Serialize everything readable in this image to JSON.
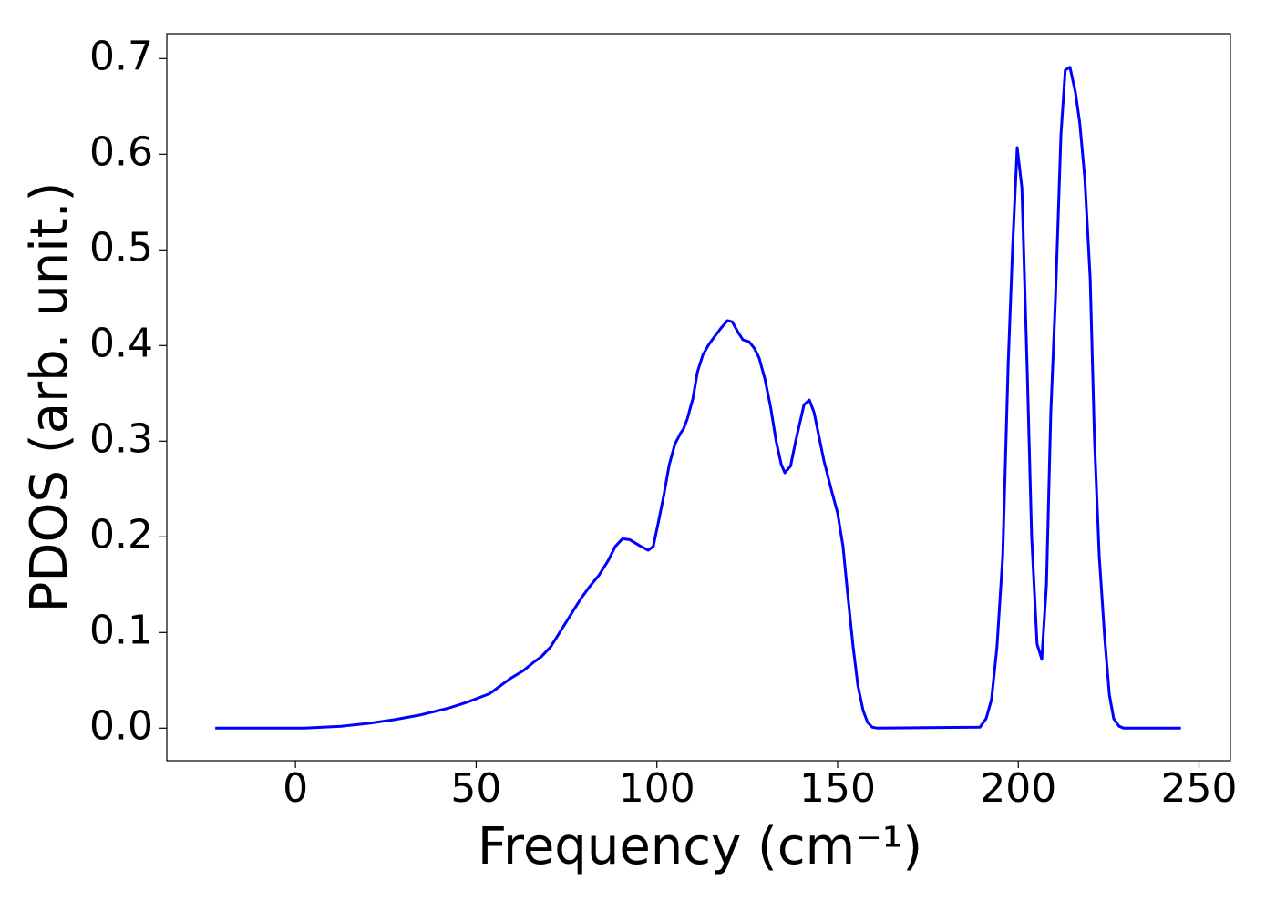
{
  "chart_data": {
    "type": "line",
    "xlabel": "Frequency (cm⁻¹)",
    "ylabel": "PDOS (arb. unit.)",
    "color": "#0000ff",
    "x": [
      -22.2,
      2.5,
      12.6,
      20.2,
      27.5,
      34.8,
      42.4,
      47.4,
      53.7,
      59.5,
      63,
      65.6,
      68.1,
      70.6,
      73.1,
      76.4,
      78.9,
      81.4,
      84,
      86.5,
      88.5,
      90.5,
      92.5,
      95.6,
      97.6,
      99,
      100.4,
      102,
      103.4,
      105,
      106.5,
      107.4,
      108.4,
      110,
      111.2,
      112.7,
      114.2,
      115.7,
      117.7,
      119.5,
      120.8,
      122.3,
      123.8,
      125.5,
      127,
      128.3,
      129.9,
      131.5,
      133,
      134.4,
      135.4,
      137,
      138.4,
      140.7,
      142.2,
      143.5,
      146.2,
      148.5,
      150,
      151.5,
      152.8,
      154.3,
      155.6,
      157.1,
      158.3,
      159.6,
      161,
      189.4,
      191.1,
      192.6,
      194.1,
      195.7,
      197.2,
      198.4,
      199.7,
      201,
      202.5,
      203.7,
      205.2,
      206.5,
      207.8,
      209,
      210.3,
      211.8,
      213,
      214.3,
      215.8,
      217,
      218.4,
      219.9,
      221.1,
      222.4,
      223.9,
      225.2,
      226.4,
      227.9,
      229.2,
      245
    ],
    "values": [
      0,
      0,
      0.002,
      0.005,
      0.009,
      0.014,
      0.021,
      0.027,
      0.036,
      0.052,
      0.06,
      0.068,
      0.075,
      0.085,
      0.1,
      0.12,
      0.135,
      0.148,
      0.16,
      0.175,
      0.19,
      0.198,
      0.197,
      0.19,
      0.186,
      0.19,
      0.215,
      0.245,
      0.275,
      0.297,
      0.308,
      0.313,
      0.323,
      0.345,
      0.372,
      0.39,
      0.4,
      0.408,
      0.418,
      0.426,
      0.425,
      0.415,
      0.406,
      0.404,
      0.397,
      0.387,
      0.365,
      0.335,
      0.3,
      0.276,
      0.267,
      0.274,
      0.3,
      0.338,
      0.343,
      0.33,
      0.28,
      0.246,
      0.225,
      0.19,
      0.14,
      0.085,
      0.045,
      0.018,
      0.006,
      0.001,
      0,
      0.001,
      0.01,
      0.03,
      0.085,
      0.18,
      0.38,
      0.5,
      0.607,
      0.565,
      0.37,
      0.2,
      0.088,
      0.072,
      0.15,
      0.33,
      0.45,
      0.62,
      0.688,
      0.691,
      0.665,
      0.633,
      0.575,
      0.47,
      0.3,
      0.18,
      0.095,
      0.035,
      0.01,
      0.002,
      0,
      0
    ],
    "xlim": [
      -35.6,
      258.7
    ],
    "ylim": [
      -0.034,
      0.726
    ],
    "xticks": [
      0,
      50,
      100,
      150,
      200,
      250
    ],
    "yticks": [
      {
        "value": 0,
        "label": "0.0"
      },
      0.1,
      0.2,
      0.3,
      0.4,
      0.5,
      0.6,
      0.7
    ]
  }
}
